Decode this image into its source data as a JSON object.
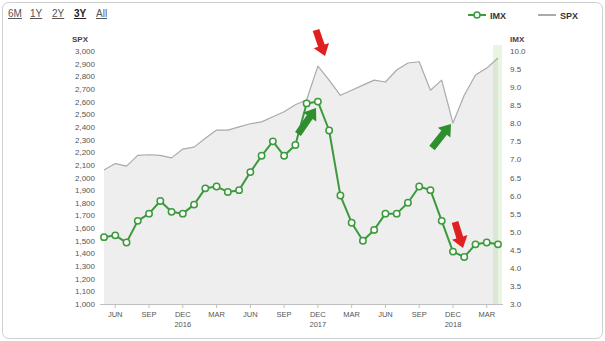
{
  "chart_data": {
    "type": "line",
    "range_buttons": [
      "6M",
      "1Y",
      "2Y",
      "3Y",
      "All"
    ],
    "selected_range": "3Y",
    "y_label": "SPX",
    "y2_label": "IMX",
    "categories": [
      null,
      "JUN",
      null,
      null,
      "SEP",
      null,
      null,
      "DEC",
      null,
      null,
      "MAR",
      null,
      null,
      "JUN",
      null,
      null,
      "SEP",
      null,
      null,
      "DEC",
      null,
      null,
      "MAR",
      null,
      null,
      "JUN",
      null,
      null,
      "SEP",
      null,
      null,
      "DEC",
      null,
      null,
      "MAR",
      null
    ],
    "year_labels": [
      {
        "index": 7,
        "label": "2016"
      },
      {
        "index": 19,
        "label": "2017"
      },
      {
        "index": 31,
        "label": "2018"
      }
    ],
    "series": [
      {
        "name": "IMX",
        "type": "line",
        "color": "#3c9a3c",
        "marker": "circle",
        "line_style": "solid",
        "axis": "y2",
        "values": [
          4.85,
          4.9,
          4.7,
          5.3,
          5.5,
          5.85,
          5.55,
          5.5,
          5.75,
          6.2,
          6.25,
          6.1,
          6.15,
          6.65,
          7.1,
          7.5,
          7.1,
          7.4,
          8.55,
          8.6,
          7.8,
          6.0,
          5.25,
          4.75,
          5.05,
          5.5,
          5.5,
          5.8,
          6.25,
          6.15,
          5.3,
          4.45,
          4.3,
          4.65,
          4.7,
          4.65
        ]
      },
      {
        "name": "SPX",
        "type": "area",
        "color": "#aaaaaa",
        "marker": "none",
        "line_style": "solid",
        "values": [
          2060,
          2110,
          2090,
          2175,
          2180,
          2175,
          2155,
          2225,
          2240,
          2310,
          2375,
          2375,
          2400,
          2425,
          2440,
          2480,
          2520,
          2575,
          2615,
          2880,
          2770,
          2650,
          2690,
          2730,
          2770,
          2755,
          2850,
          2905,
          2915,
          2690,
          2770,
          2430,
          2650,
          2810,
          2865,
          2945
        ]
      }
    ],
    "ylim": [
      1000,
      3000
    ],
    "yticks": [
      {
        "value": 1000,
        "label": "1,000"
      },
      {
        "value": 1100,
        "label": "1,100"
      },
      {
        "value": 1200,
        "label": "1,200"
      },
      {
        "value": 1300,
        "label": "1,300"
      },
      {
        "value": 1400,
        "label": "1,400"
      },
      {
        "value": 1500,
        "label": "1,500"
      },
      {
        "value": 1600,
        "label": "1,600"
      },
      {
        "value": 1700,
        "label": "1,700"
      },
      {
        "value": 1800,
        "label": "1,800"
      },
      {
        "value": 1900,
        "label": "1,900"
      },
      {
        "value": 2000,
        "label": "2,000"
      },
      {
        "value": 2100,
        "label": "2,100"
      },
      {
        "value": 2200,
        "label": "2,200"
      },
      {
        "value": 2300,
        "label": "2,300"
      },
      {
        "value": 2400,
        "label": "2,400"
      },
      {
        "value": 2500,
        "label": "2,500"
      },
      {
        "value": 2600,
        "label": "2,600"
      },
      {
        "value": 2700,
        "label": "2,700"
      },
      {
        "value": 2800,
        "label": "2,800"
      },
      {
        "value": 2900,
        "label": "2,900"
      },
      {
        "value": 3000,
        "label": "3,000"
      }
    ],
    "y2lim": [
      3,
      10
    ],
    "y2ticks": [
      {
        "value": 3,
        "label": "3.0"
      },
      {
        "value": 3.5,
        "label": "3.5"
      },
      {
        "value": 4,
        "label": "4.0"
      },
      {
        "value": 4.5,
        "label": "4.5"
      },
      {
        "value": 5,
        "label": "5.0"
      },
      {
        "value": 5.5,
        "label": "5.5"
      },
      {
        "value": 6,
        "label": "6.0"
      },
      {
        "value": 6.5,
        "label": "6.5"
      },
      {
        "value": 7,
        "label": "7.0"
      },
      {
        "value": 7.5,
        "label": "7.5"
      },
      {
        "value": 8,
        "label": "8.0"
      },
      {
        "value": 8.5,
        "label": "8.5"
      },
      {
        "value": 9,
        "label": "9.0"
      },
      {
        "value": 9.5,
        "label": "9.5"
      },
      {
        "value": 10,
        "label": "10.0"
      }
    ],
    "grid": false,
    "legend": "top-right"
  }
}
